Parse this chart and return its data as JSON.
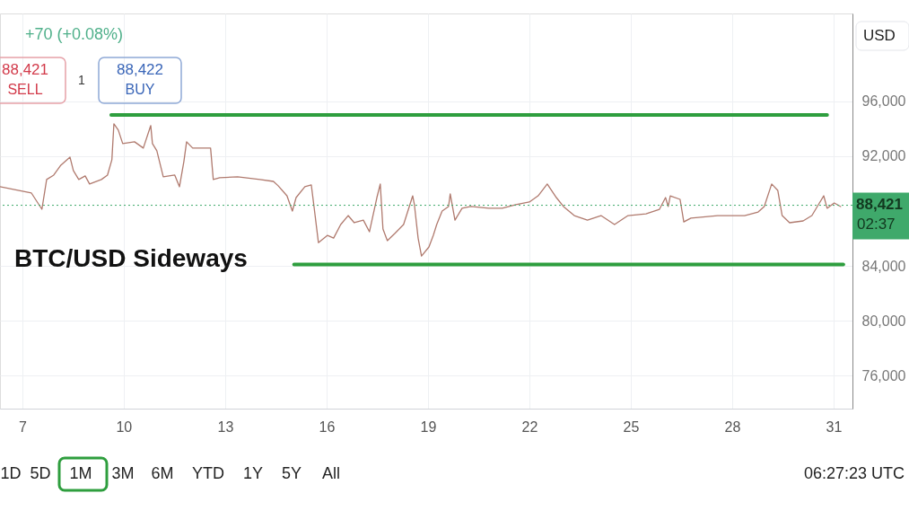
{
  "chart_data": {
    "type": "line",
    "title": "BTC/USD Sideways",
    "ylabel": "USD",
    "xlim": [
      6.34,
      31.56
    ],
    "xticks": [
      7,
      10,
      13,
      16,
      19,
      22,
      25,
      28,
      31
    ],
    "ylim": [
      73600,
      102400
    ],
    "yticks": [
      {
        "value": 76000,
        "label": "76,000"
      },
      {
        "value": 80000,
        "label": "80,000"
      },
      {
        "value": 84000,
        "label": "84,000"
      },
      {
        "value": 92000,
        "label": "92,000"
      },
      {
        "value": 96000,
        "label": "96,000"
      }
    ],
    "grid": true,
    "marker": "none",
    "line_style": "solid",
    "series": [
      {
        "color": "#b07a6e",
        "x": [
          6.34,
          6.87,
          7.27,
          7.58,
          7.72,
          7.93,
          8.14,
          8.41,
          8.51,
          8.67,
          8.86,
          8.99,
          9.34,
          9.52,
          9.65,
          9.71,
          9.84,
          9.97,
          10.32,
          10.58,
          10.8,
          10.85,
          10.98,
          11.17,
          11.51,
          11.65,
          11.78,
          11.86,
          12.04,
          12.57,
          12.65,
          12.84,
          13.37,
          14.03,
          14.43,
          14.57,
          14.83,
          14.99,
          15.1,
          15.36,
          15.55,
          15.63,
          15.76,
          16.03,
          16.21,
          16.42,
          16.64,
          16.82,
          17.09,
          17.27,
          17.49,
          17.59,
          17.67,
          17.8,
          18.02,
          18.28,
          18.55,
          18.6,
          18.71,
          18.81,
          19.03,
          19.16,
          19.26,
          19.42,
          19.61,
          19.66,
          19.8,
          20.01,
          20.27,
          20.8,
          21.2,
          21.6,
          22.0,
          22.26,
          22.53,
          22.8,
          23.01,
          23.33,
          23.72,
          24.12,
          24.52,
          24.92,
          25.45,
          25.85,
          26.03,
          26.11,
          26.17,
          26.46,
          26.57,
          26.78,
          27.57,
          28.37,
          28.77,
          28.95,
          29.17,
          29.35,
          29.48,
          29.7,
          30.1,
          30.36,
          30.55,
          30.71,
          30.81,
          31.02,
          31.21
        ],
        "values": [
          89770,
          89510,
          89310,
          88130,
          90300,
          90620,
          91340,
          91930,
          90950,
          90300,
          90560,
          89970,
          90300,
          90620,
          91740,
          94360,
          93900,
          92920,
          93050,
          92590,
          94230,
          92920,
          92390,
          90490,
          90620,
          89770,
          91610,
          93050,
          92590,
          92590,
          90300,
          90430,
          90490,
          90300,
          90160,
          89840,
          89110,
          88000,
          88980,
          89770,
          89900,
          88330,
          85700,
          86230,
          86030,
          87020,
          87670,
          87150,
          87340,
          86490,
          88980,
          89970,
          86690,
          85840,
          86360,
          87020,
          89110,
          88460,
          86030,
          84720,
          85380,
          86230,
          87020,
          88000,
          88330,
          89250,
          87340,
          88200,
          88330,
          88200,
          88200,
          88460,
          88660,
          89110,
          89970,
          88980,
          88330,
          87670,
          87340,
          87670,
          87020,
          87670,
          87800,
          88130,
          88980,
          88330,
          89110,
          88850,
          87210,
          87480,
          87670,
          87670,
          87930,
          88330,
          89970,
          89510,
          87670,
          87150,
          87280,
          87670,
          88460,
          89110,
          88200,
          88590,
          88330
        ]
      },
      {
        "type": "line",
        "color": "#2e9e3e",
        "x": [
          9.63,
          30.81
        ],
        "values": [
          95000,
          95000
        ]
      },
      {
        "type": "line",
        "color": "#2e9e3e",
        "x": [
          15.04,
          31.29
        ],
        "values": [
          84100,
          84100
        ]
      }
    ],
    "ref_lines": [
      {
        "axis": "y",
        "value": 88421,
        "label": "88,421",
        "line_style": "dotted",
        "color": "#3fa96b"
      }
    ],
    "annotations": [
      "+70 (+0.08%)",
      "88,421",
      "SELL",
      "1",
      "88,422",
      "BUY",
      "02:37",
      "1D",
      "5D",
      "1M",
      "3M",
      "6M",
      "YTD",
      "1Y",
      "5Y",
      "All",
      "06:27:23 UTC"
    ]
  }
}
